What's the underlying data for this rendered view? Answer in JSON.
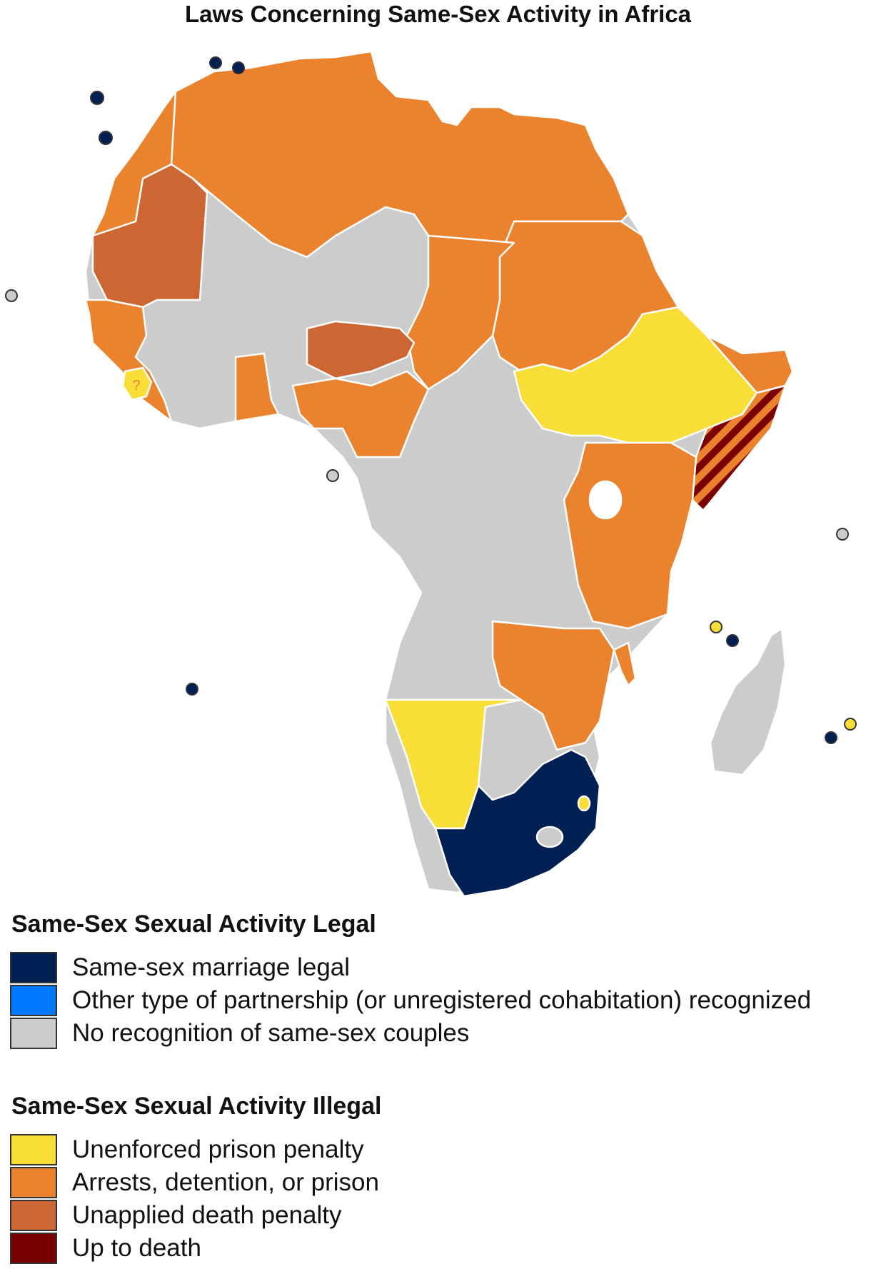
{
  "title": "Laws Concerning Same-Sex Activity in Africa",
  "colors": {
    "marriage": "#001f53",
    "partnership": "#0078ff",
    "none": "#cccccc",
    "unenforced": "#f8de36",
    "arrests": "#ea822e",
    "unapplied_death": "#cc6633",
    "death": "#7a0000",
    "border": "#ffffff"
  },
  "map_marks": {
    "question_mark": "?"
  },
  "legend": {
    "legal_heading": "Same-Sex Sexual Activity Legal",
    "legal_items": [
      {
        "label": "Same-sex marriage legal",
        "color": "#001f53"
      },
      {
        "label": "Other type of partnership (or unregistered cohabitation) recognized",
        "color": "#0078ff"
      },
      {
        "label": "No recognition of same-sex couples",
        "color": "#cccccc"
      }
    ],
    "illegal_heading": "Same-Sex Sexual Activity Illegal",
    "illegal_items": [
      {
        "label": "Unenforced prison penalty",
        "color": "#f8de36"
      },
      {
        "label": "Arrests, detention, or prison",
        "color": "#ea822e"
      },
      {
        "label": "Unapplied death penalty",
        "color": "#cc6633"
      },
      {
        "label": "Up to death",
        "color": "#7a0000"
      }
    ]
  }
}
